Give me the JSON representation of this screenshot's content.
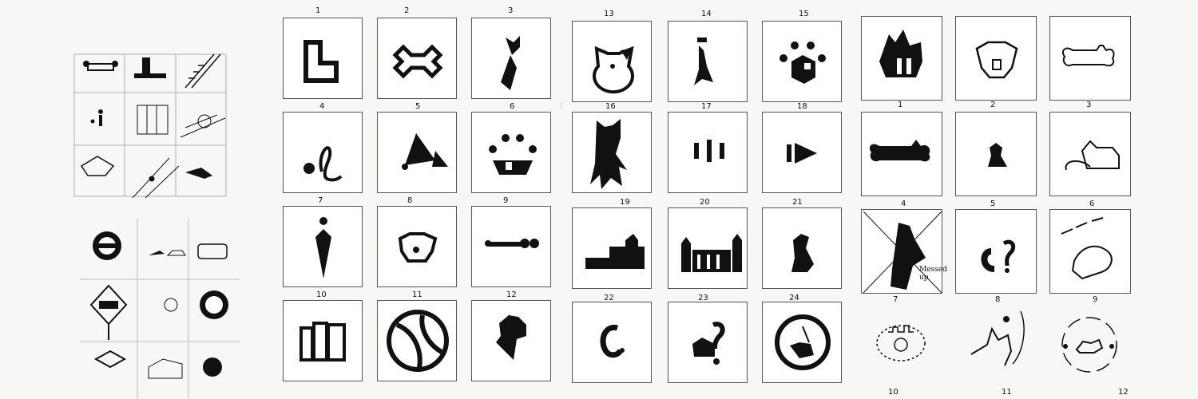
{
  "left_sheet": {
    "annotation_text": "Messed up"
  },
  "panel_a": {
    "numbers": [
      "1",
      "2",
      "3",
      "13",
      "14",
      "15",
      "4",
      "5",
      "6",
      "16",
      "17",
      "18",
      "7",
      "8",
      "9",
      "19",
      "20",
      "21",
      "10",
      "11",
      "12",
      "22",
      "23",
      "24"
    ]
  },
  "panel_b": {
    "numbers": [
      "1",
      "2",
      "3",
      "4",
      "5",
      "6",
      "7",
      "8",
      "9",
      "10",
      "11",
      "12"
    ],
    "annotation": "Messed up"
  }
}
